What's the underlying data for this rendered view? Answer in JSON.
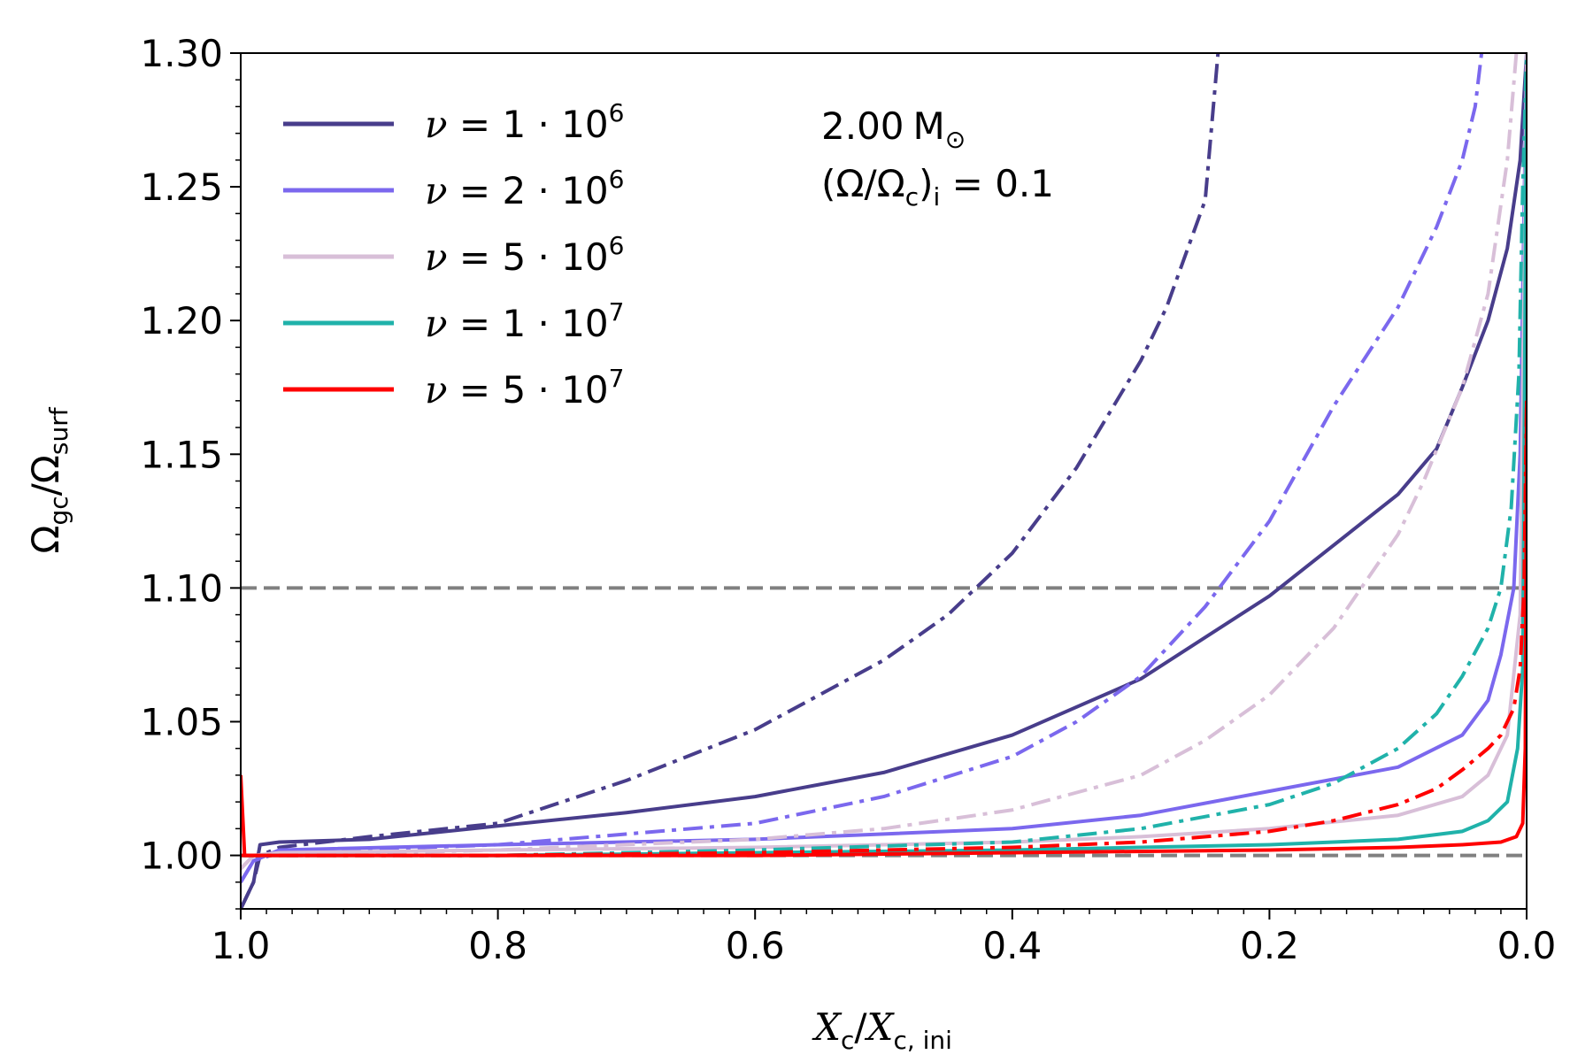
{
  "chart_data": {
    "type": "line",
    "xlabel": {
      "main": "X",
      "sub1": "c",
      "slash": "/",
      "main2": "X",
      "sub2": "c, ini"
    },
    "ylabel": {
      "main": "Ω",
      "sub1": "gc",
      "slash": "/",
      "main2": "Ω",
      "sub2": "surf"
    },
    "xlim": [
      1.0,
      0.0
    ],
    "ylim": [
      0.98,
      1.3
    ],
    "x_ticks": [
      1.0,
      0.8,
      0.6,
      0.4,
      0.2,
      0.0
    ],
    "x_tick_labels": [
      "1.0",
      "0.8",
      "0.6",
      "0.4",
      "0.2",
      "0.0"
    ],
    "y_ticks": [
      1.0,
      1.05,
      1.1,
      1.15,
      1.2,
      1.25,
      1.3
    ],
    "y_tick_labels": [
      "1.00",
      "1.05",
      "1.10",
      "1.15",
      "1.20",
      "1.25",
      "1.30"
    ],
    "reference_lines": [
      {
        "y": 1.1,
        "color": "#808080",
        "style": "dashed"
      },
      {
        "y": 1.0,
        "color": "#808080",
        "style": "dashed"
      }
    ],
    "annotation": {
      "mass_value": "2.00",
      "mass_unit": "M",
      "mass_sub": "⊙",
      "rot_open": "(Ω/Ω",
      "rot_sub1": "c",
      "rot_close": ")",
      "rot_sub2": "i",
      "rot_eq": " = 0.1"
    },
    "series": [
      {
        "name": "ν = 1 · 10^6",
        "legend_lhs": "ν",
        "legend_rhs": " = 1 · 10",
        "legend_exp": "6",
        "color": "#483d8b",
        "solid": [
          [
            1.0,
            0.98
          ],
          [
            0.99,
            0.99
          ],
          [
            0.985,
            1.004
          ],
          [
            0.97,
            1.005
          ],
          [
            0.9,
            1.006
          ],
          [
            0.8,
            1.011
          ],
          [
            0.7,
            1.016
          ],
          [
            0.6,
            1.022
          ],
          [
            0.5,
            1.031
          ],
          [
            0.4,
            1.045
          ],
          [
            0.3,
            1.066
          ],
          [
            0.2,
            1.097
          ],
          [
            0.1,
            1.135
          ],
          [
            0.07,
            1.152
          ],
          [
            0.05,
            1.175
          ],
          [
            0.03,
            1.2
          ],
          [
            0.015,
            1.227
          ],
          [
            0.005,
            1.26
          ],
          [
            0.0,
            1.3
          ]
        ],
        "dashdot": [
          [
            1.0,
            0.98
          ],
          [
            0.99,
            0.99
          ],
          [
            0.985,
            1.0
          ],
          [
            0.97,
            1.003
          ],
          [
            0.9,
            1.007
          ],
          [
            0.8,
            1.012
          ],
          [
            0.7,
            1.028
          ],
          [
            0.6,
            1.047
          ],
          [
            0.5,
            1.073
          ],
          [
            0.45,
            1.09
          ],
          [
            0.4,
            1.113
          ],
          [
            0.35,
            1.145
          ],
          [
            0.3,
            1.185
          ],
          [
            0.28,
            1.205
          ],
          [
            0.25,
            1.245
          ],
          [
            0.24,
            1.3
          ]
        ]
      },
      {
        "name": "ν = 2 · 10^6",
        "legend_lhs": "ν",
        "legend_rhs": " = 2 · 10",
        "legend_exp": "6",
        "color": "#7b68ee",
        "solid": [
          [
            1.0,
            0.99
          ],
          [
            0.99,
            0.998
          ],
          [
            0.97,
            1.002
          ],
          [
            0.8,
            1.004
          ],
          [
            0.6,
            1.006
          ],
          [
            0.4,
            1.01
          ],
          [
            0.3,
            1.015
          ],
          [
            0.2,
            1.024
          ],
          [
            0.1,
            1.033
          ],
          [
            0.05,
            1.045
          ],
          [
            0.03,
            1.058
          ],
          [
            0.02,
            1.075
          ],
          [
            0.01,
            1.1
          ],
          [
            0.005,
            1.15
          ],
          [
            0.0,
            1.3
          ]
        ],
        "dashdot": [
          [
            1.0,
            0.99
          ],
          [
            0.99,
            0.998
          ],
          [
            0.97,
            1.001
          ],
          [
            0.8,
            1.004
          ],
          [
            0.6,
            1.012
          ],
          [
            0.5,
            1.022
          ],
          [
            0.4,
            1.037
          ],
          [
            0.35,
            1.05
          ],
          [
            0.3,
            1.067
          ],
          [
            0.25,
            1.093
          ],
          [
            0.2,
            1.125
          ],
          [
            0.15,
            1.168
          ],
          [
            0.1,
            1.205
          ],
          [
            0.07,
            1.235
          ],
          [
            0.05,
            1.26
          ],
          [
            0.04,
            1.28
          ],
          [
            0.035,
            1.3
          ]
        ]
      },
      {
        "name": "ν = 5 · 10^6",
        "legend_lhs": "ν",
        "legend_rhs": " = 5 · 10",
        "legend_exp": "6",
        "color": "#d8bfd8",
        "solid": [
          [
            1.0,
            0.995
          ],
          [
            0.99,
            1.0
          ],
          [
            0.97,
            1.001
          ],
          [
            0.8,
            1.002
          ],
          [
            0.6,
            1.003
          ],
          [
            0.4,
            1.005
          ],
          [
            0.3,
            1.007
          ],
          [
            0.2,
            1.01
          ],
          [
            0.1,
            1.015
          ],
          [
            0.05,
            1.022
          ],
          [
            0.03,
            1.03
          ],
          [
            0.015,
            1.045
          ],
          [
            0.005,
            1.09
          ],
          [
            0.0,
            1.3
          ]
        ],
        "dashdot": [
          [
            1.0,
            0.995
          ],
          [
            0.99,
            1.0
          ],
          [
            0.97,
            1.0
          ],
          [
            0.8,
            1.002
          ],
          [
            0.6,
            1.006
          ],
          [
            0.5,
            1.01
          ],
          [
            0.4,
            1.017
          ],
          [
            0.3,
            1.03
          ],
          [
            0.25,
            1.043
          ],
          [
            0.2,
            1.06
          ],
          [
            0.15,
            1.085
          ],
          [
            0.1,
            1.12
          ],
          [
            0.08,
            1.14
          ],
          [
            0.05,
            1.175
          ],
          [
            0.03,
            1.21
          ],
          [
            0.015,
            1.26
          ],
          [
            0.008,
            1.3
          ]
        ]
      },
      {
        "name": "ν = 1 · 10^7",
        "legend_lhs": "ν",
        "legend_rhs": " = 1 · 10",
        "legend_exp": "7",
        "color": "#20b2aa",
        "solid": [
          [
            1.0,
            1.0
          ],
          [
            0.8,
            1.0
          ],
          [
            0.6,
            1.001
          ],
          [
            0.4,
            1.002
          ],
          [
            0.2,
            1.004
          ],
          [
            0.1,
            1.006
          ],
          [
            0.05,
            1.009
          ],
          [
            0.03,
            1.013
          ],
          [
            0.015,
            1.02
          ],
          [
            0.007,
            1.04
          ],
          [
            0.003,
            1.07
          ],
          [
            0.0,
            1.29
          ]
        ],
        "dashdot": [
          [
            1.0,
            1.0
          ],
          [
            0.8,
            1.0
          ],
          [
            0.6,
            1.002
          ],
          [
            0.4,
            1.005
          ],
          [
            0.3,
            1.01
          ],
          [
            0.2,
            1.019
          ],
          [
            0.15,
            1.027
          ],
          [
            0.1,
            1.04
          ],
          [
            0.07,
            1.053
          ],
          [
            0.05,
            1.067
          ],
          [
            0.03,
            1.085
          ],
          [
            0.02,
            1.1
          ],
          [
            0.012,
            1.13
          ],
          [
            0.006,
            1.18
          ],
          [
            0.003,
            1.25
          ],
          [
            0.0,
            1.3
          ]
        ]
      },
      {
        "name": "ν = 5 · 10^7",
        "legend_lhs": "ν",
        "legend_rhs": " = 5 · 10",
        "legend_exp": "7",
        "color": "#ff0000",
        "solid": [
          [
            1.0,
            1.03
          ],
          [
            0.997,
            1.0
          ],
          [
            0.8,
            1.0
          ],
          [
            0.6,
            1.0
          ],
          [
            0.4,
            1.001
          ],
          [
            0.2,
            1.002
          ],
          [
            0.1,
            1.003
          ],
          [
            0.05,
            1.004
          ],
          [
            0.02,
            1.005
          ],
          [
            0.008,
            1.007
          ],
          [
            0.003,
            1.012
          ],
          [
            0.001,
            1.04
          ],
          [
            0.0,
            1.17
          ]
        ],
        "dashdot": [
          [
            1.0,
            1.0
          ],
          [
            0.8,
            1.0
          ],
          [
            0.6,
            1.001
          ],
          [
            0.4,
            1.003
          ],
          [
            0.3,
            1.005
          ],
          [
            0.2,
            1.009
          ],
          [
            0.15,
            1.013
          ],
          [
            0.1,
            1.019
          ],
          [
            0.07,
            1.025
          ],
          [
            0.05,
            1.032
          ],
          [
            0.03,
            1.04
          ],
          [
            0.02,
            1.045
          ],
          [
            0.01,
            1.055
          ],
          [
            0.005,
            1.07
          ],
          [
            0.002,
            1.1
          ],
          [
            0.0,
            1.17
          ]
        ]
      }
    ]
  }
}
